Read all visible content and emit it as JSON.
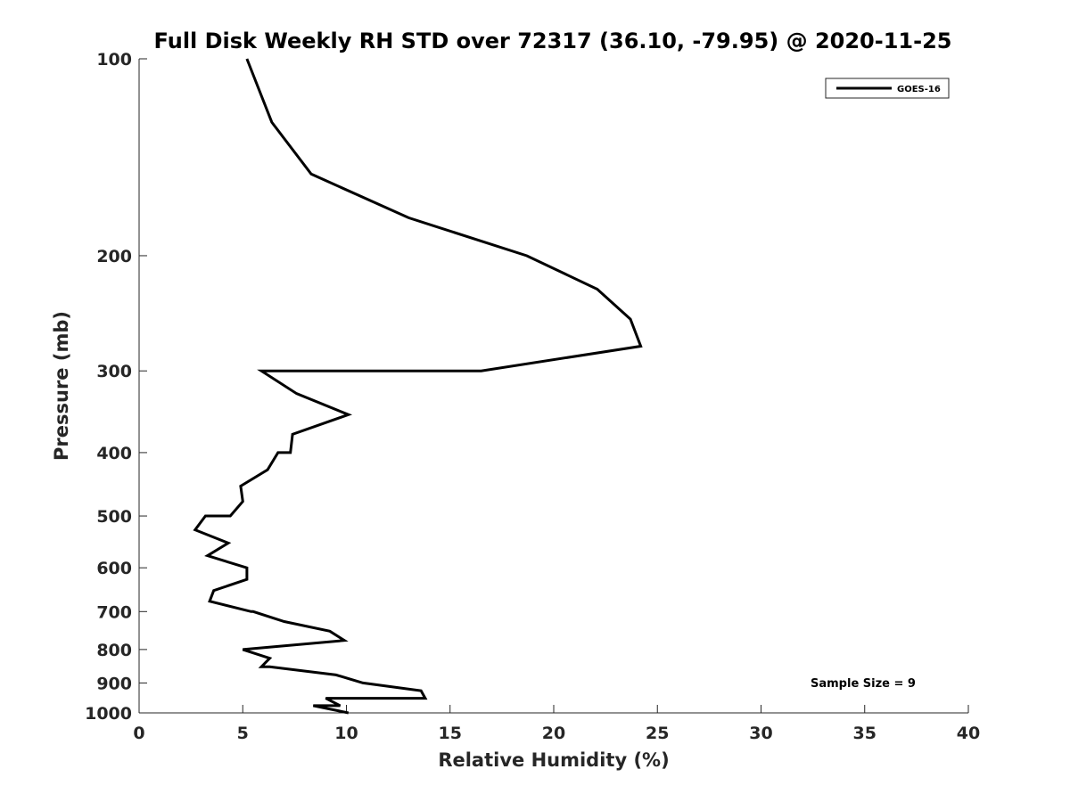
{
  "chart_data": {
    "type": "line",
    "title": "Full Disk Weekly RH STD over 72317 (36.10, -79.95) @ 2020-11-25",
    "xlabel": "Relative Humidity (%)",
    "ylabel": "Pressure (mb)",
    "xlim": [
      0,
      40
    ],
    "ylim": [
      100,
      1000
    ],
    "yscale": "log",
    "y_reversed": true,
    "grid": false,
    "legend_position": "top-right",
    "xticks": [
      0,
      5,
      10,
      15,
      20,
      25,
      30,
      35,
      40
    ],
    "xtick_labels": [
      "0",
      "5",
      "10",
      "15",
      "20",
      "25",
      "30",
      "35",
      "40"
    ],
    "yticks": [
      100,
      200,
      300,
      400,
      500,
      600,
      700,
      800,
      900,
      1000
    ],
    "ytick_labels": [
      "100",
      "200",
      "300",
      "400",
      "500",
      "600",
      "700",
      "800",
      "900",
      "1000"
    ],
    "series": [
      {
        "name": "GOES-16",
        "color": "#000000",
        "points": [
          [
            5.2,
            100
          ],
          [
            6.4,
            125
          ],
          [
            8.3,
            150
          ],
          [
            13.0,
            175
          ],
          [
            18.7,
            200
          ],
          [
            22.1,
            225
          ],
          [
            23.7,
            250
          ],
          [
            24.2,
            275
          ],
          [
            16.5,
            300
          ],
          [
            10.7,
            300
          ],
          [
            5.9,
            300
          ],
          [
            7.6,
            325
          ],
          [
            10.1,
            350
          ],
          [
            7.4,
            375
          ],
          [
            7.3,
            400
          ],
          [
            6.7,
            400
          ],
          [
            6.2,
            425
          ],
          [
            4.9,
            450
          ],
          [
            5.0,
            475
          ],
          [
            4.4,
            500
          ],
          [
            3.2,
            500
          ],
          [
            2.7,
            525
          ],
          [
            4.3,
            550
          ],
          [
            3.3,
            575
          ],
          [
            5.2,
            600
          ],
          [
            5.2,
            625
          ],
          [
            5.2,
            625
          ],
          [
            3.6,
            650
          ],
          [
            3.4,
            675
          ],
          [
            5.4,
            700
          ],
          [
            5.5,
            700
          ],
          [
            7.0,
            725
          ],
          [
            9.2,
            750
          ],
          [
            9.9,
            775
          ],
          [
            5.0,
            800
          ],
          [
            6.3,
            825
          ],
          [
            5.9,
            850
          ],
          [
            6.3,
            850
          ],
          [
            9.5,
            875
          ],
          [
            10.8,
            900
          ],
          [
            13.6,
            925
          ],
          [
            13.8,
            950
          ],
          [
            9.0,
            950
          ],
          [
            9.7,
            975
          ],
          [
            8.4,
            975
          ],
          [
            10.1,
            1000
          ]
        ]
      }
    ],
    "annotation": "Sample Size = 9"
  }
}
